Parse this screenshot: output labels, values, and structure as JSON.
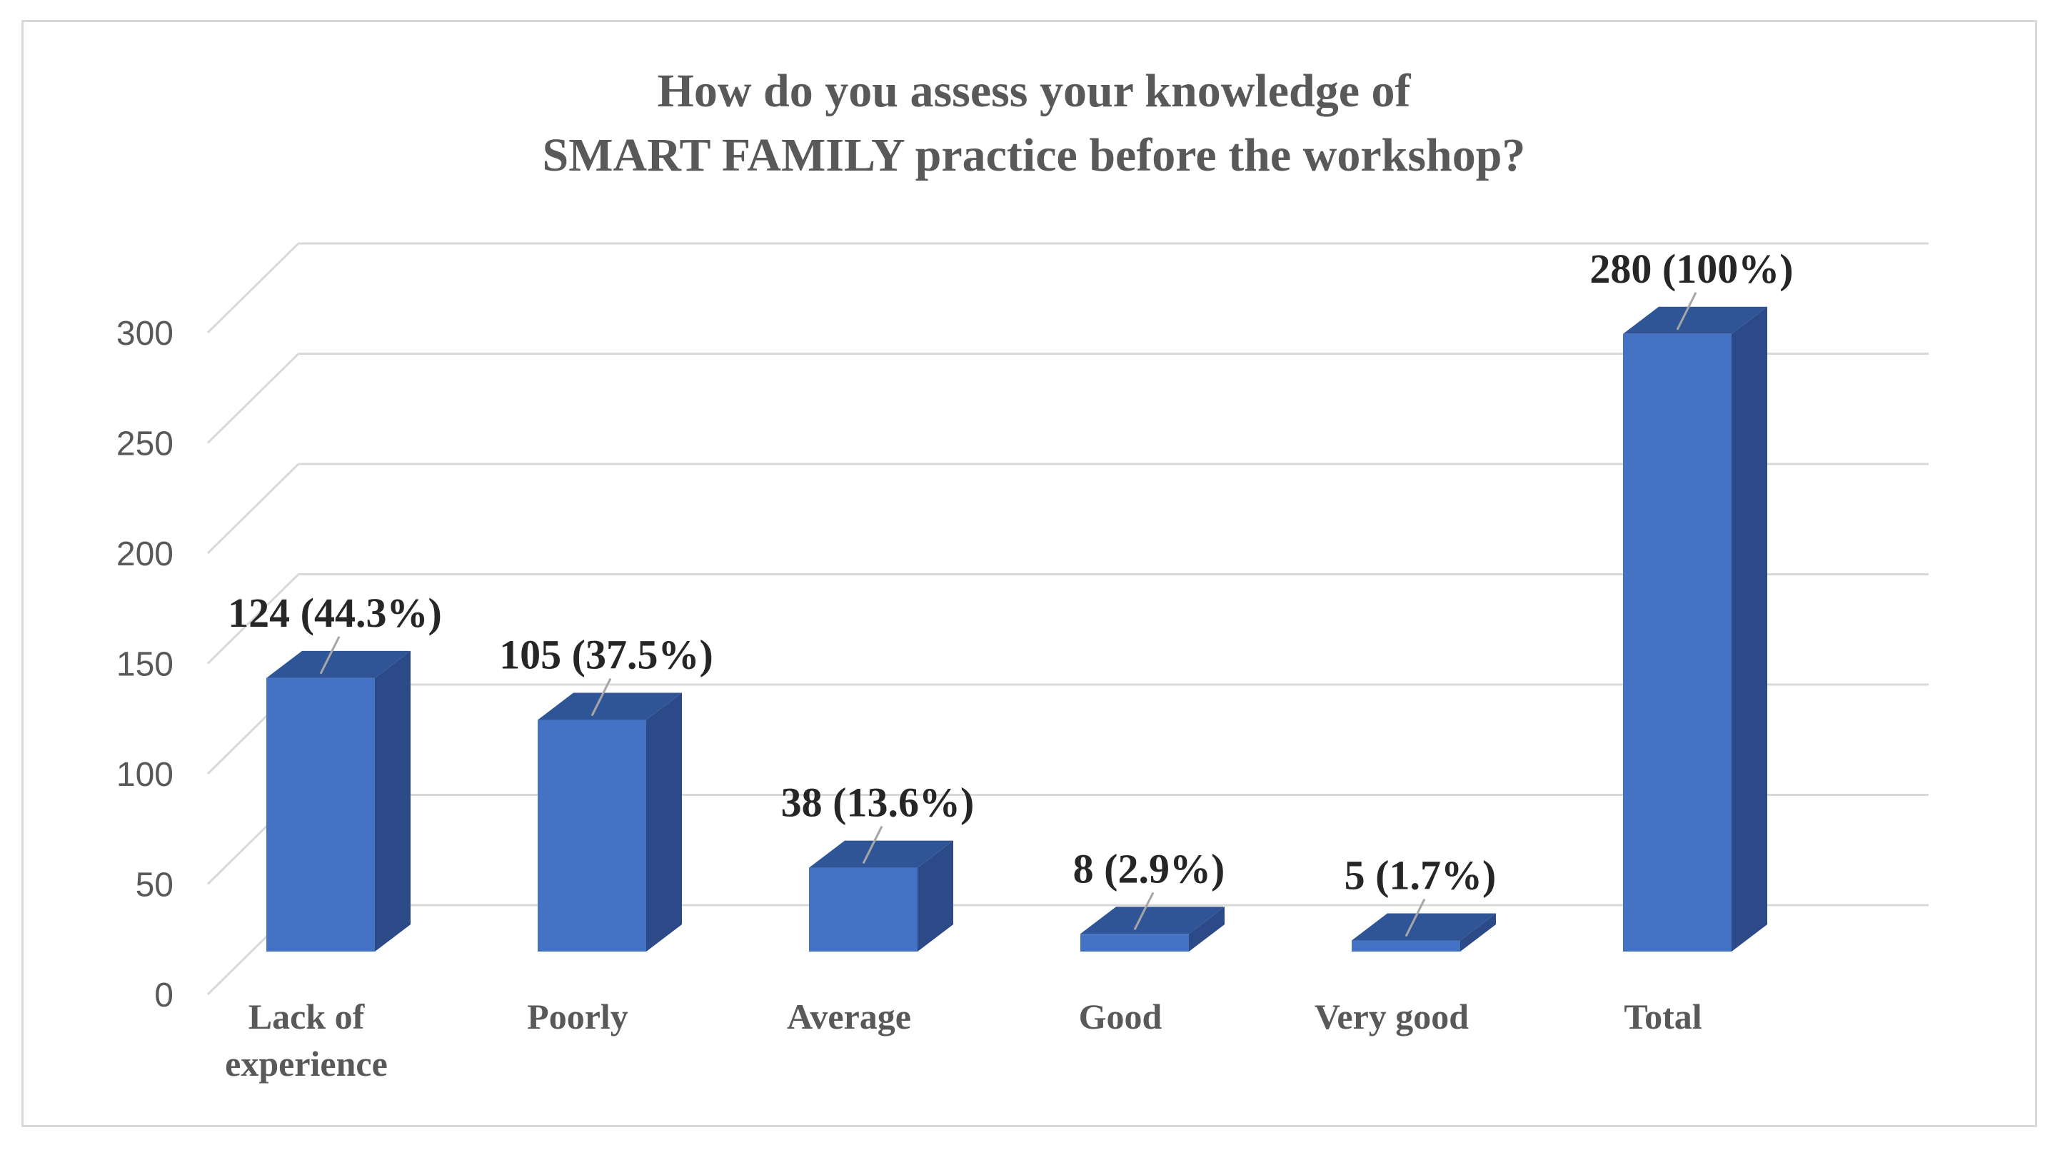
{
  "chart_data": {
    "type": "bar",
    "title_lines": [
      "How do you assess your knowledge of",
      "SMART FAMILY practice before the workshop?"
    ],
    "categories": [
      [
        "Lack of",
        "experience"
      ],
      [
        "Poorly"
      ],
      [
        "Average"
      ],
      [
        "Good"
      ],
      [
        "Very good"
      ],
      [
        "Total"
      ]
    ],
    "values": [
      124,
      105,
      38,
      8,
      5,
      280
    ],
    "data_labels": [
      "124 (44.3%)",
      "105 (37.5%)",
      "38 (13.6%)",
      "8 (2.9%)",
      "5 (1.7%)",
      "280 (100%)"
    ],
    "y_ticks": [
      "0",
      "50",
      "100",
      "150",
      "200",
      "250",
      "300"
    ],
    "ylim": [
      0,
      300
    ],
    "grid": true,
    "legend": "none",
    "style": "3d-column",
    "colors": {
      "bar_front": "#4472c4",
      "bar_top": "#2f5597",
      "bar_side": "#2b4a87",
      "grid": "#d9d9d9"
    }
  }
}
